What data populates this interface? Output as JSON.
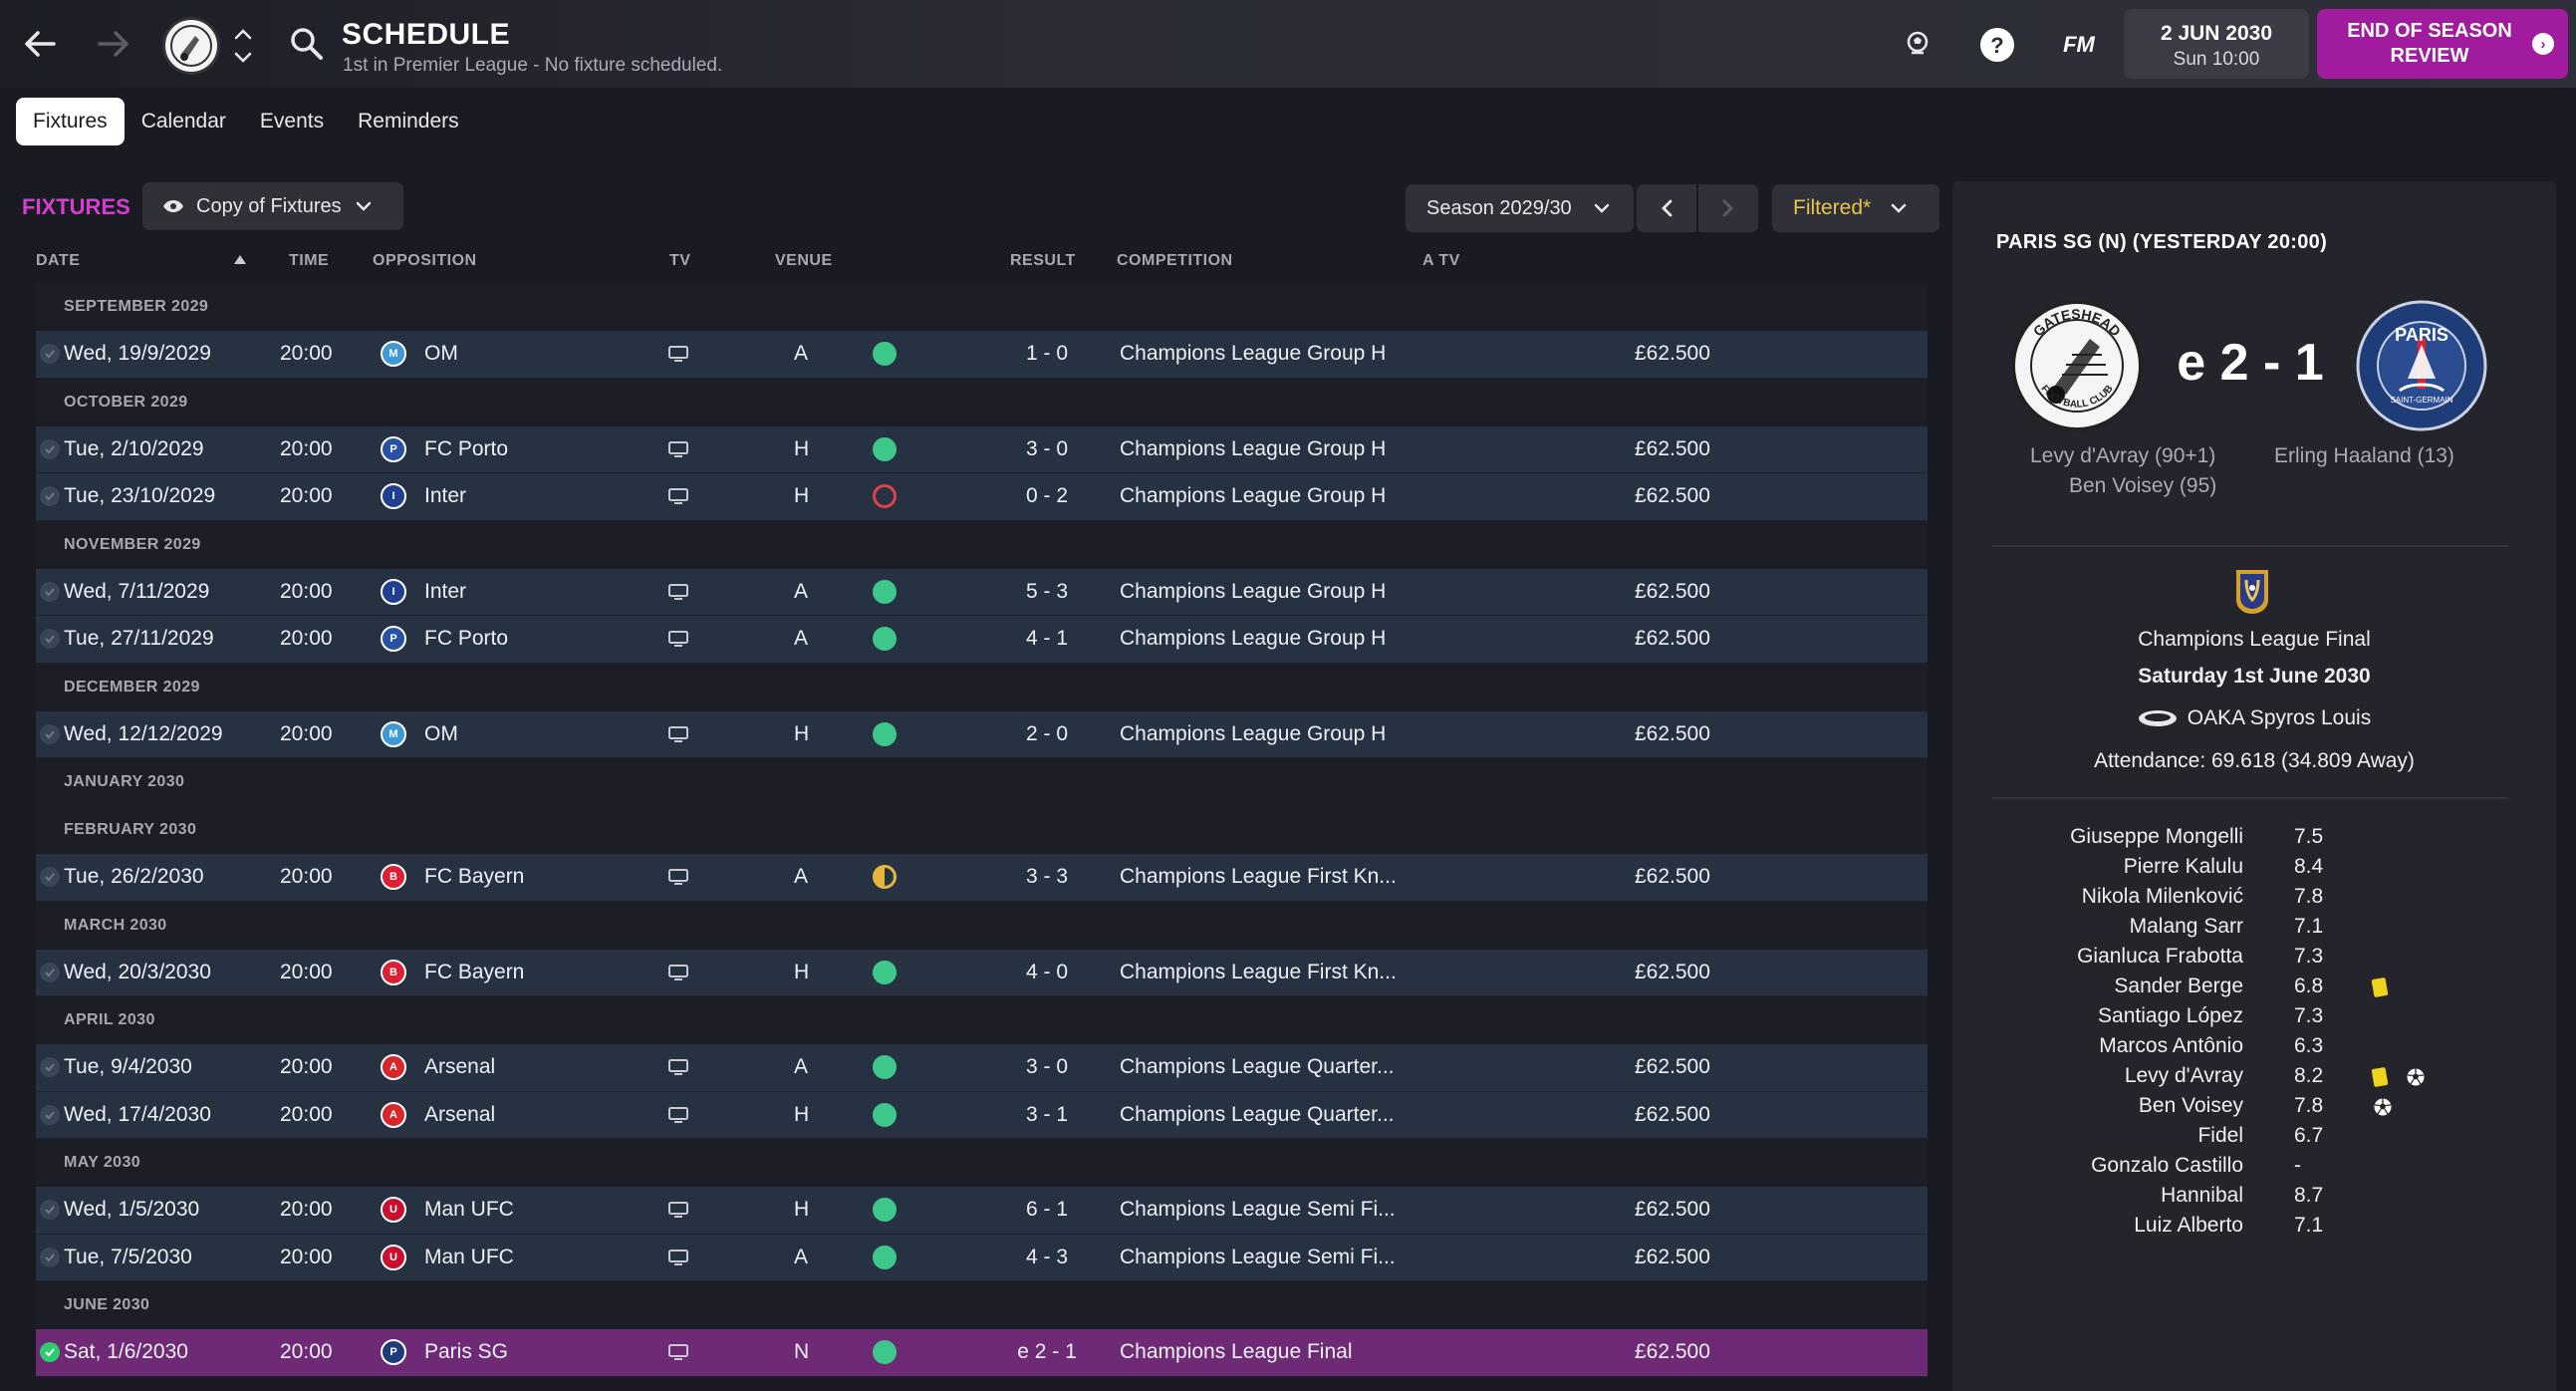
{
  "header": {
    "title": "SCHEDULE",
    "subtitle": "1st in Premier League - No fixture scheduled.",
    "date_main": "2 JUN 2030",
    "date_sub": "Sun 10:00",
    "fm_label": "FM",
    "eos_line1": "END OF SEASON",
    "eos_line2": "REVIEW"
  },
  "tabs": [
    {
      "label": "Fixtures"
    },
    {
      "label": "Calendar"
    },
    {
      "label": "Events"
    },
    {
      "label": "Reminders"
    }
  ],
  "toolbar": {
    "section_label": "FIXTURES",
    "view_label": "Copy of Fixtures",
    "season_label": "Season 2029/30",
    "filter_label": "Filtered*"
  },
  "columns": {
    "date": "DATE",
    "time": "TIME",
    "opposition": "OPPOSITION",
    "tv": "TV",
    "venue": "VENUE",
    "result": "RESULT",
    "competition": "COMPETITION",
    "atv": "A TV"
  },
  "months": [
    {
      "label": "SEPTEMBER 2029",
      "fixtures": [
        {
          "date": "Wed, 19/9/2029",
          "time": "20:00",
          "opp": "OM",
          "badge": "om",
          "venue": "A",
          "res": "win",
          "score": "1 - 0",
          "comp": "Champions League Group H",
          "gate": "£62.500"
        }
      ]
    },
    {
      "label": "OCTOBER 2029",
      "fixtures": [
        {
          "date": "Tue, 2/10/2029",
          "time": "20:00",
          "opp": "FC Porto",
          "badge": "porto",
          "venue": "H",
          "res": "win",
          "score": "3 - 0",
          "comp": "Champions League Group H",
          "gate": "£62.500"
        },
        {
          "date": "Tue, 23/10/2029",
          "time": "20:00",
          "opp": "Inter",
          "badge": "inter",
          "venue": "H",
          "res": "loss",
          "score": "0 - 2",
          "comp": "Champions League Group H",
          "gate": "£62.500"
        }
      ]
    },
    {
      "label": "NOVEMBER 2029",
      "fixtures": [
        {
          "date": "Wed, 7/11/2029",
          "time": "20:00",
          "opp": "Inter",
          "badge": "inter",
          "venue": "A",
          "res": "win",
          "score": "5 - 3",
          "comp": "Champions League Group H",
          "gate": "£62.500"
        },
        {
          "date": "Tue, 27/11/2029",
          "time": "20:00",
          "opp": "FC Porto",
          "badge": "porto",
          "venue": "A",
          "res": "win",
          "score": "4 - 1",
          "comp": "Champions League Group H",
          "gate": "£62.500"
        }
      ]
    },
    {
      "label": "DECEMBER 2029",
      "fixtures": [
        {
          "date": "Wed, 12/12/2029",
          "time": "20:00",
          "opp": "OM",
          "badge": "om",
          "venue": "H",
          "res": "win",
          "score": "2 - 0",
          "comp": "Champions League Group H",
          "gate": "£62.500"
        }
      ]
    },
    {
      "label": "JANUARY 2030",
      "fixtures": []
    },
    {
      "label": "FEBRUARY 2030",
      "fixtures": [
        {
          "date": "Tue, 26/2/2030",
          "time": "20:00",
          "opp": "FC Bayern",
          "badge": "bayern",
          "venue": "A",
          "res": "draw",
          "score": "3 - 3",
          "comp": "Champions League First Kn...",
          "gate": "£62.500"
        }
      ]
    },
    {
      "label": "MARCH 2030",
      "fixtures": [
        {
          "date": "Wed, 20/3/2030",
          "time": "20:00",
          "opp": "FC Bayern",
          "badge": "bayern",
          "venue": "H",
          "res": "win",
          "score": "4 - 0",
          "comp": "Champions League First Kn...",
          "gate": "£62.500"
        }
      ]
    },
    {
      "label": "APRIL 2030",
      "fixtures": [
        {
          "date": "Tue, 9/4/2030",
          "time": "20:00",
          "opp": "Arsenal",
          "badge": "arsenal",
          "venue": "A",
          "res": "win",
          "score": "3 - 0",
          "comp": "Champions League Quarter...",
          "gate": "£62.500"
        },
        {
          "date": "Wed, 17/4/2030",
          "time": "20:00",
          "opp": "Arsenal",
          "badge": "arsenal",
          "venue": "H",
          "res": "win",
          "score": "3 - 1",
          "comp": "Champions League Quarter...",
          "gate": "£62.500"
        }
      ]
    },
    {
      "label": "MAY 2030",
      "fixtures": [
        {
          "date": "Wed, 1/5/2030",
          "time": "20:00",
          "opp": "Man UFC",
          "badge": "manufc",
          "venue": "H",
          "res": "win",
          "score": "6 - 1",
          "comp": "Champions League Semi Fi...",
          "gate": "£62.500"
        },
        {
          "date": "Tue, 7/5/2030",
          "time": "20:00",
          "opp": "Man UFC",
          "badge": "manufc",
          "venue": "A",
          "res": "win",
          "score": "4 - 3",
          "comp": "Champions League Semi Fi...",
          "gate": "£62.500"
        }
      ]
    },
    {
      "label": "JUNE 2030",
      "fixtures": [
        {
          "date": "Sat, 1/6/2030",
          "time": "20:00",
          "opp": "Paris SG",
          "badge": "psg",
          "venue": "N",
          "res": "win",
          "score": "e 2 - 1",
          "comp": "Champions League Final",
          "gate": "£62.500",
          "selected": true
        }
      ]
    }
  ],
  "colors": {
    "win": "#3ec78a",
    "loss": "#e0414b",
    "draw": "#e6b63a",
    "accent": "#a01b9e",
    "om": "#3d9ad6",
    "porto": "#2851a3",
    "inter": "#1f3f8f",
    "bayern": "#dc1f33",
    "arsenal": "#d7272d",
    "manufc": "#c8102e",
    "psg": "#1d3c78"
  },
  "match": {
    "title": "PARIS SG (N) (YESTERDAY 20:00)",
    "score": "e 2 - 1",
    "home_crest_text": "GATESHEAD",
    "home_crest_sub": "FOOTBALL CLUB",
    "away_crest_text": "PARIS",
    "away_crest_sub": "SAINT-GERMAIN",
    "home_scorer_1": "Levy d'Avray (90+1)",
    "home_scorer_2": "Ben Voisey (95)",
    "away_scorer_1": "Erling Haaland (13)",
    "competition": "Champions League Final",
    "date": "Saturday 1st June 2030",
    "stadium": "OAKA Spyros Louis",
    "attendance": "Attendance: 69.618 (34.809 Away)"
  },
  "ratings": [
    {
      "name": "Giuseppe Mongelli",
      "rating": "7.5"
    },
    {
      "name": "Pierre Kalulu",
      "rating": "8.4"
    },
    {
      "name": "Nikola Milenković",
      "rating": "7.8"
    },
    {
      "name": "Malang Sarr",
      "rating": "7.1"
    },
    {
      "name": "Gianluca Frabotta",
      "rating": "7.3"
    },
    {
      "name": "Sander Berge",
      "rating": "6.8",
      "yellow": true
    },
    {
      "name": "Santiago López",
      "rating": "7.3"
    },
    {
      "name": "Marcos Antônio",
      "rating": "6.3"
    },
    {
      "name": "Levy d'Avray",
      "rating": "8.2",
      "yellow": true,
      "goal": true
    },
    {
      "name": "Ben Voisey",
      "rating": "7.8",
      "goal": true
    },
    {
      "name": "Fidel",
      "rating": "6.7"
    },
    {
      "name": "Gonzalo Castillo",
      "rating": "-"
    },
    {
      "name": "Hannibal",
      "rating": "8.7"
    },
    {
      "name": "Luiz Alberto",
      "rating": "7.1"
    }
  ]
}
